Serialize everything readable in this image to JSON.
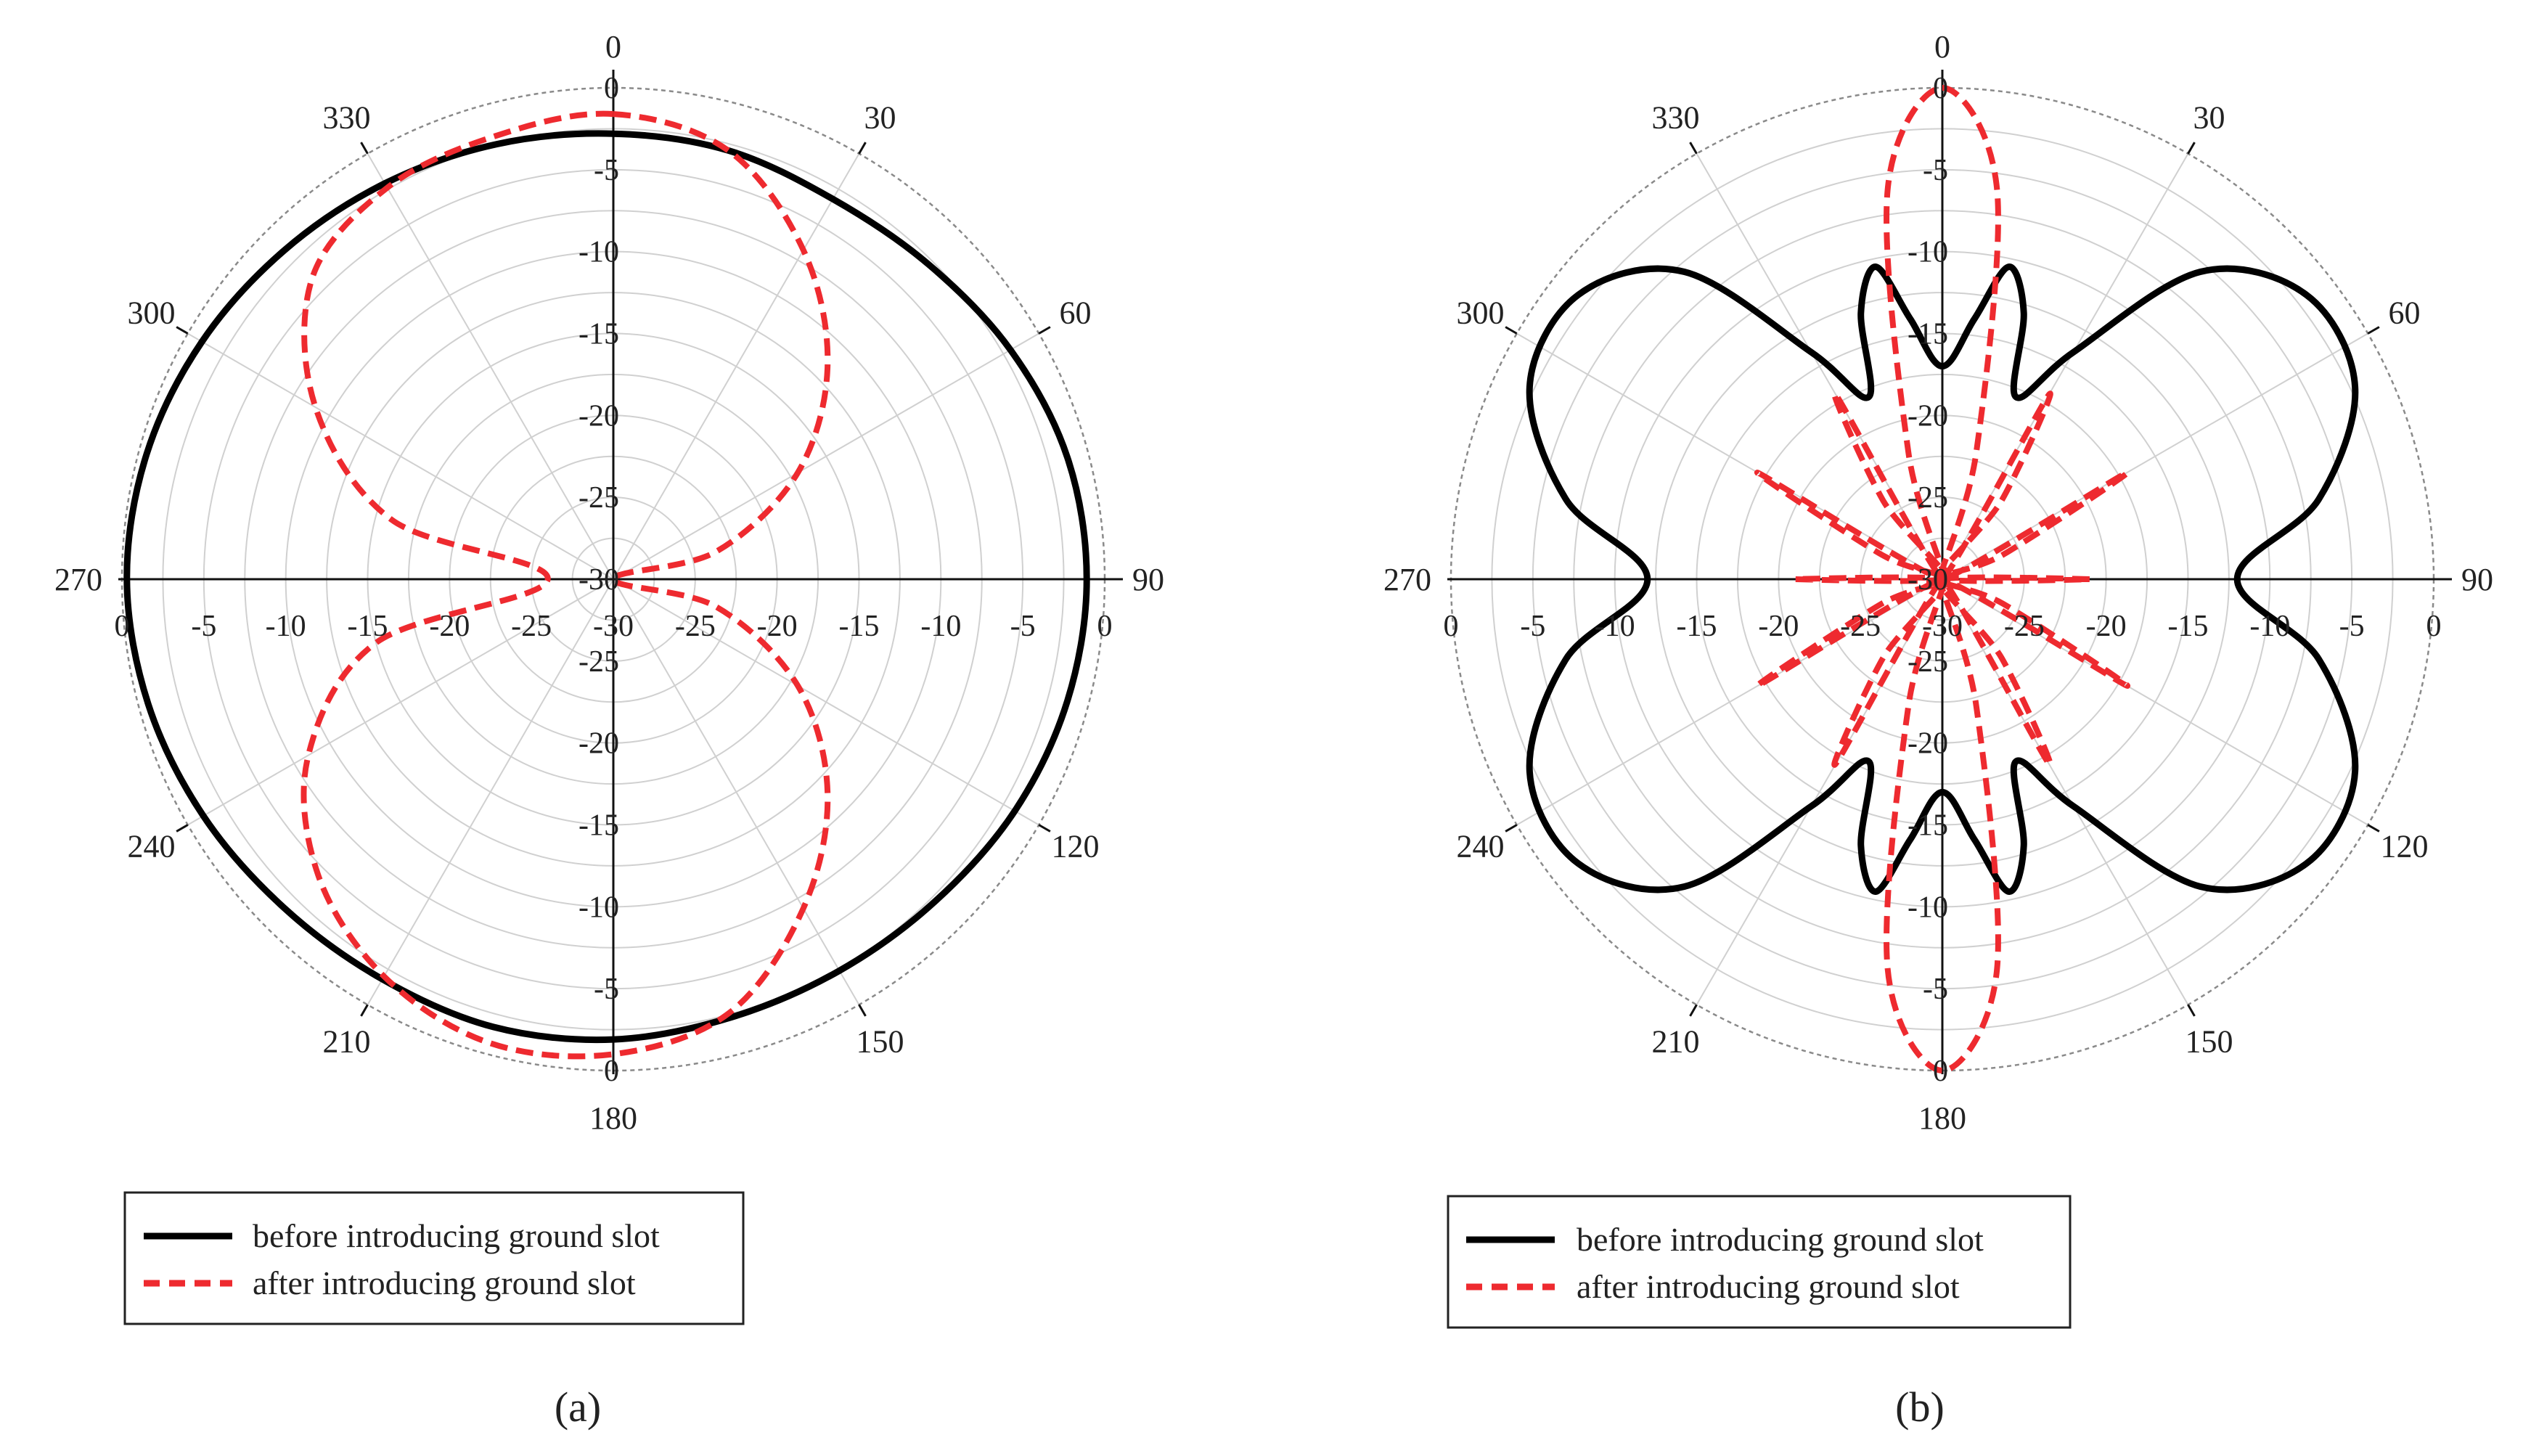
{
  "colors": {
    "before": "#000000",
    "after": "#ee2a2f",
    "grid": "#d0d0d0"
  },
  "chart_data": [
    {
      "type": "polar",
      "caption": "(a)",
      "angle_labels": [
        "0",
        "30",
        "60",
        "90",
        "120",
        "150",
        "180",
        "210",
        "240",
        "270",
        "300",
        "330"
      ],
      "radial_labels": [
        "0",
        "-5",
        "-10",
        "-15",
        "-20",
        "-25",
        "-30"
      ],
      "rlim": [
        -30,
        0
      ],
      "grid": true,
      "legend_position": "bottom",
      "series": [
        {
          "name": "before introducing ground slot",
          "style": "solid",
          "points": [
            [
              0,
              -2.8
            ],
            [
              15,
              -2.9
            ],
            [
              30,
              -3.2
            ],
            [
              45,
              -2.8
            ],
            [
              60,
              -2.0
            ],
            [
              75,
              -1.3
            ],
            [
              90,
              -1.1
            ],
            [
              105,
              -1.3
            ],
            [
              120,
              -1.7
            ],
            [
              135,
              -2.2
            ],
            [
              150,
              -2.4
            ],
            [
              165,
              -2.3
            ],
            [
              180,
              -1.9
            ],
            [
              195,
              -1.7
            ],
            [
              210,
              -1.8
            ],
            [
              225,
              -1.6
            ],
            [
              240,
              -1.1
            ],
            [
              255,
              -0.6
            ],
            [
              270,
              -0.3
            ],
            [
              285,
              -0.5
            ],
            [
              300,
              -1.0
            ],
            [
              315,
              -1.6
            ],
            [
              330,
              -2.1
            ],
            [
              345,
              -2.5
            ]
          ]
        },
        {
          "name": "after introducing ground slot",
          "style": "dashed",
          "points": [
            [
              0,
              -1.6
            ],
            [
              15,
              -2.9
            ],
            [
              30,
              -6.8
            ],
            [
              45,
              -11.5
            ],
            [
              60,
              -17.0
            ],
            [
              75,
              -23.5
            ],
            [
              90,
              -30
            ],
            [
              105,
              -23.5
            ],
            [
              120,
              -17.0
            ],
            [
              135,
              -11.5
            ],
            [
              150,
              -6.8
            ],
            [
              165,
              -2.6
            ],
            [
              180,
              -1.0
            ],
            [
              195,
              -0.7
            ],
            [
              210,
              -2.0
            ],
            [
              225,
              -4.5
            ],
            [
              240,
              -8.5
            ],
            [
              255,
              -15.0
            ],
            [
              270,
              -26.0
            ],
            [
              285,
              -16.0
            ],
            [
              300,
              -9.0
            ],
            [
              315,
              -4.0
            ],
            [
              330,
              -2.4
            ],
            [
              345,
              -2.0
            ]
          ]
        }
      ]
    },
    {
      "type": "polar",
      "caption": "(b)",
      "angle_labels": [
        "0",
        "30",
        "60",
        "90",
        "120",
        "150",
        "180",
        "210",
        "240",
        "270",
        "300",
        "330"
      ],
      "radial_labels": [
        "0",
        "-5",
        "-10",
        "-15",
        "-20",
        "-25",
        "-30"
      ],
      "rlim": [
        -30,
        0
      ],
      "grid": true,
      "legend_position": "bottom",
      "series": [
        {
          "name": "before introducing ground slot",
          "style": "solid",
          "points": [
            [
              0,
              -17
            ],
            [
              7,
              -14
            ],
            [
              12,
              -10.5
            ],
            [
              17,
              -13
            ],
            [
              22,
              -18
            ],
            [
              30,
              -14
            ],
            [
              40,
              -5.5
            ],
            [
              52,
              -1.8
            ],
            [
              65,
              -2.2
            ],
            [
              78,
              -6.5
            ],
            [
              90,
              -12
            ],
            [
              102,
              -6.5
            ],
            [
              115,
              -2.2
            ],
            [
              128,
              -1.8
            ],
            [
              140,
              -5.5
            ],
            [
              150,
              -14
            ],
            [
              158,
              -18
            ],
            [
              163,
              -13
            ],
            [
              168,
              -10.5
            ],
            [
              173,
              -14
            ],
            [
              180,
              -17
            ],
            [
              187,
              -14
            ],
            [
              192,
              -10.5
            ],
            [
              197,
              -13
            ],
            [
              202,
              -18
            ],
            [
              210,
              -14
            ],
            [
              220,
              -5.5
            ],
            [
              232,
              -1.8
            ],
            [
              245,
              -2.2
            ],
            [
              258,
              -6.5
            ],
            [
              270,
              -12
            ],
            [
              282,
              -6.5
            ],
            [
              295,
              -2.2
            ],
            [
              308,
              -1.8
            ],
            [
              320,
              -5.5
            ],
            [
              330,
              -14
            ],
            [
              338,
              -18
            ],
            [
              343,
              -13
            ],
            [
              348,
              -10.5
            ],
            [
              353,
              -14
            ],
            [
              360,
              -17
            ]
          ]
        },
        {
          "name": "after introducing ground slot",
          "style": "dashed",
          "points": [
            [
              0,
              0
            ],
            [
              8,
              -6
            ],
            [
              15,
              -22
            ],
            [
              22,
              -30
            ],
            [
              30,
              -17
            ],
            [
              37,
              -24
            ],
            [
              45,
              -30
            ],
            [
              60,
              -17
            ],
            [
              68,
              -26
            ],
            [
              75,
              -30
            ],
            [
              90,
              -21
            ],
            [
              105,
              -30
            ],
            [
              112,
              -26
            ],
            [
              120,
              -17
            ],
            [
              135,
              -30
            ],
            [
              143,
              -24
            ],
            [
              150,
              -17
            ],
            [
              158,
              -30
            ],
            [
              165,
              -22
            ],
            [
              172,
              -6
            ],
            [
              180,
              0
            ],
            [
              188,
              -6
            ],
            [
              195,
              -22
            ],
            [
              202,
              -30
            ],
            [
              210,
              -17
            ],
            [
              217,
              -24
            ],
            [
              225,
              -30
            ],
            [
              240,
              -17
            ],
            [
              248,
              -26
            ],
            [
              255,
              -30
            ],
            [
              270,
              -21
            ],
            [
              285,
              -30
            ],
            [
              292,
              -26
            ],
            [
              300,
              -17
            ],
            [
              315,
              -30
            ],
            [
              323,
              -24
            ],
            [
              330,
              -17
            ],
            [
              338,
              -30
            ],
            [
              345,
              -22
            ],
            [
              352,
              -6
            ],
            [
              360,
              0
            ]
          ]
        }
      ]
    }
  ]
}
